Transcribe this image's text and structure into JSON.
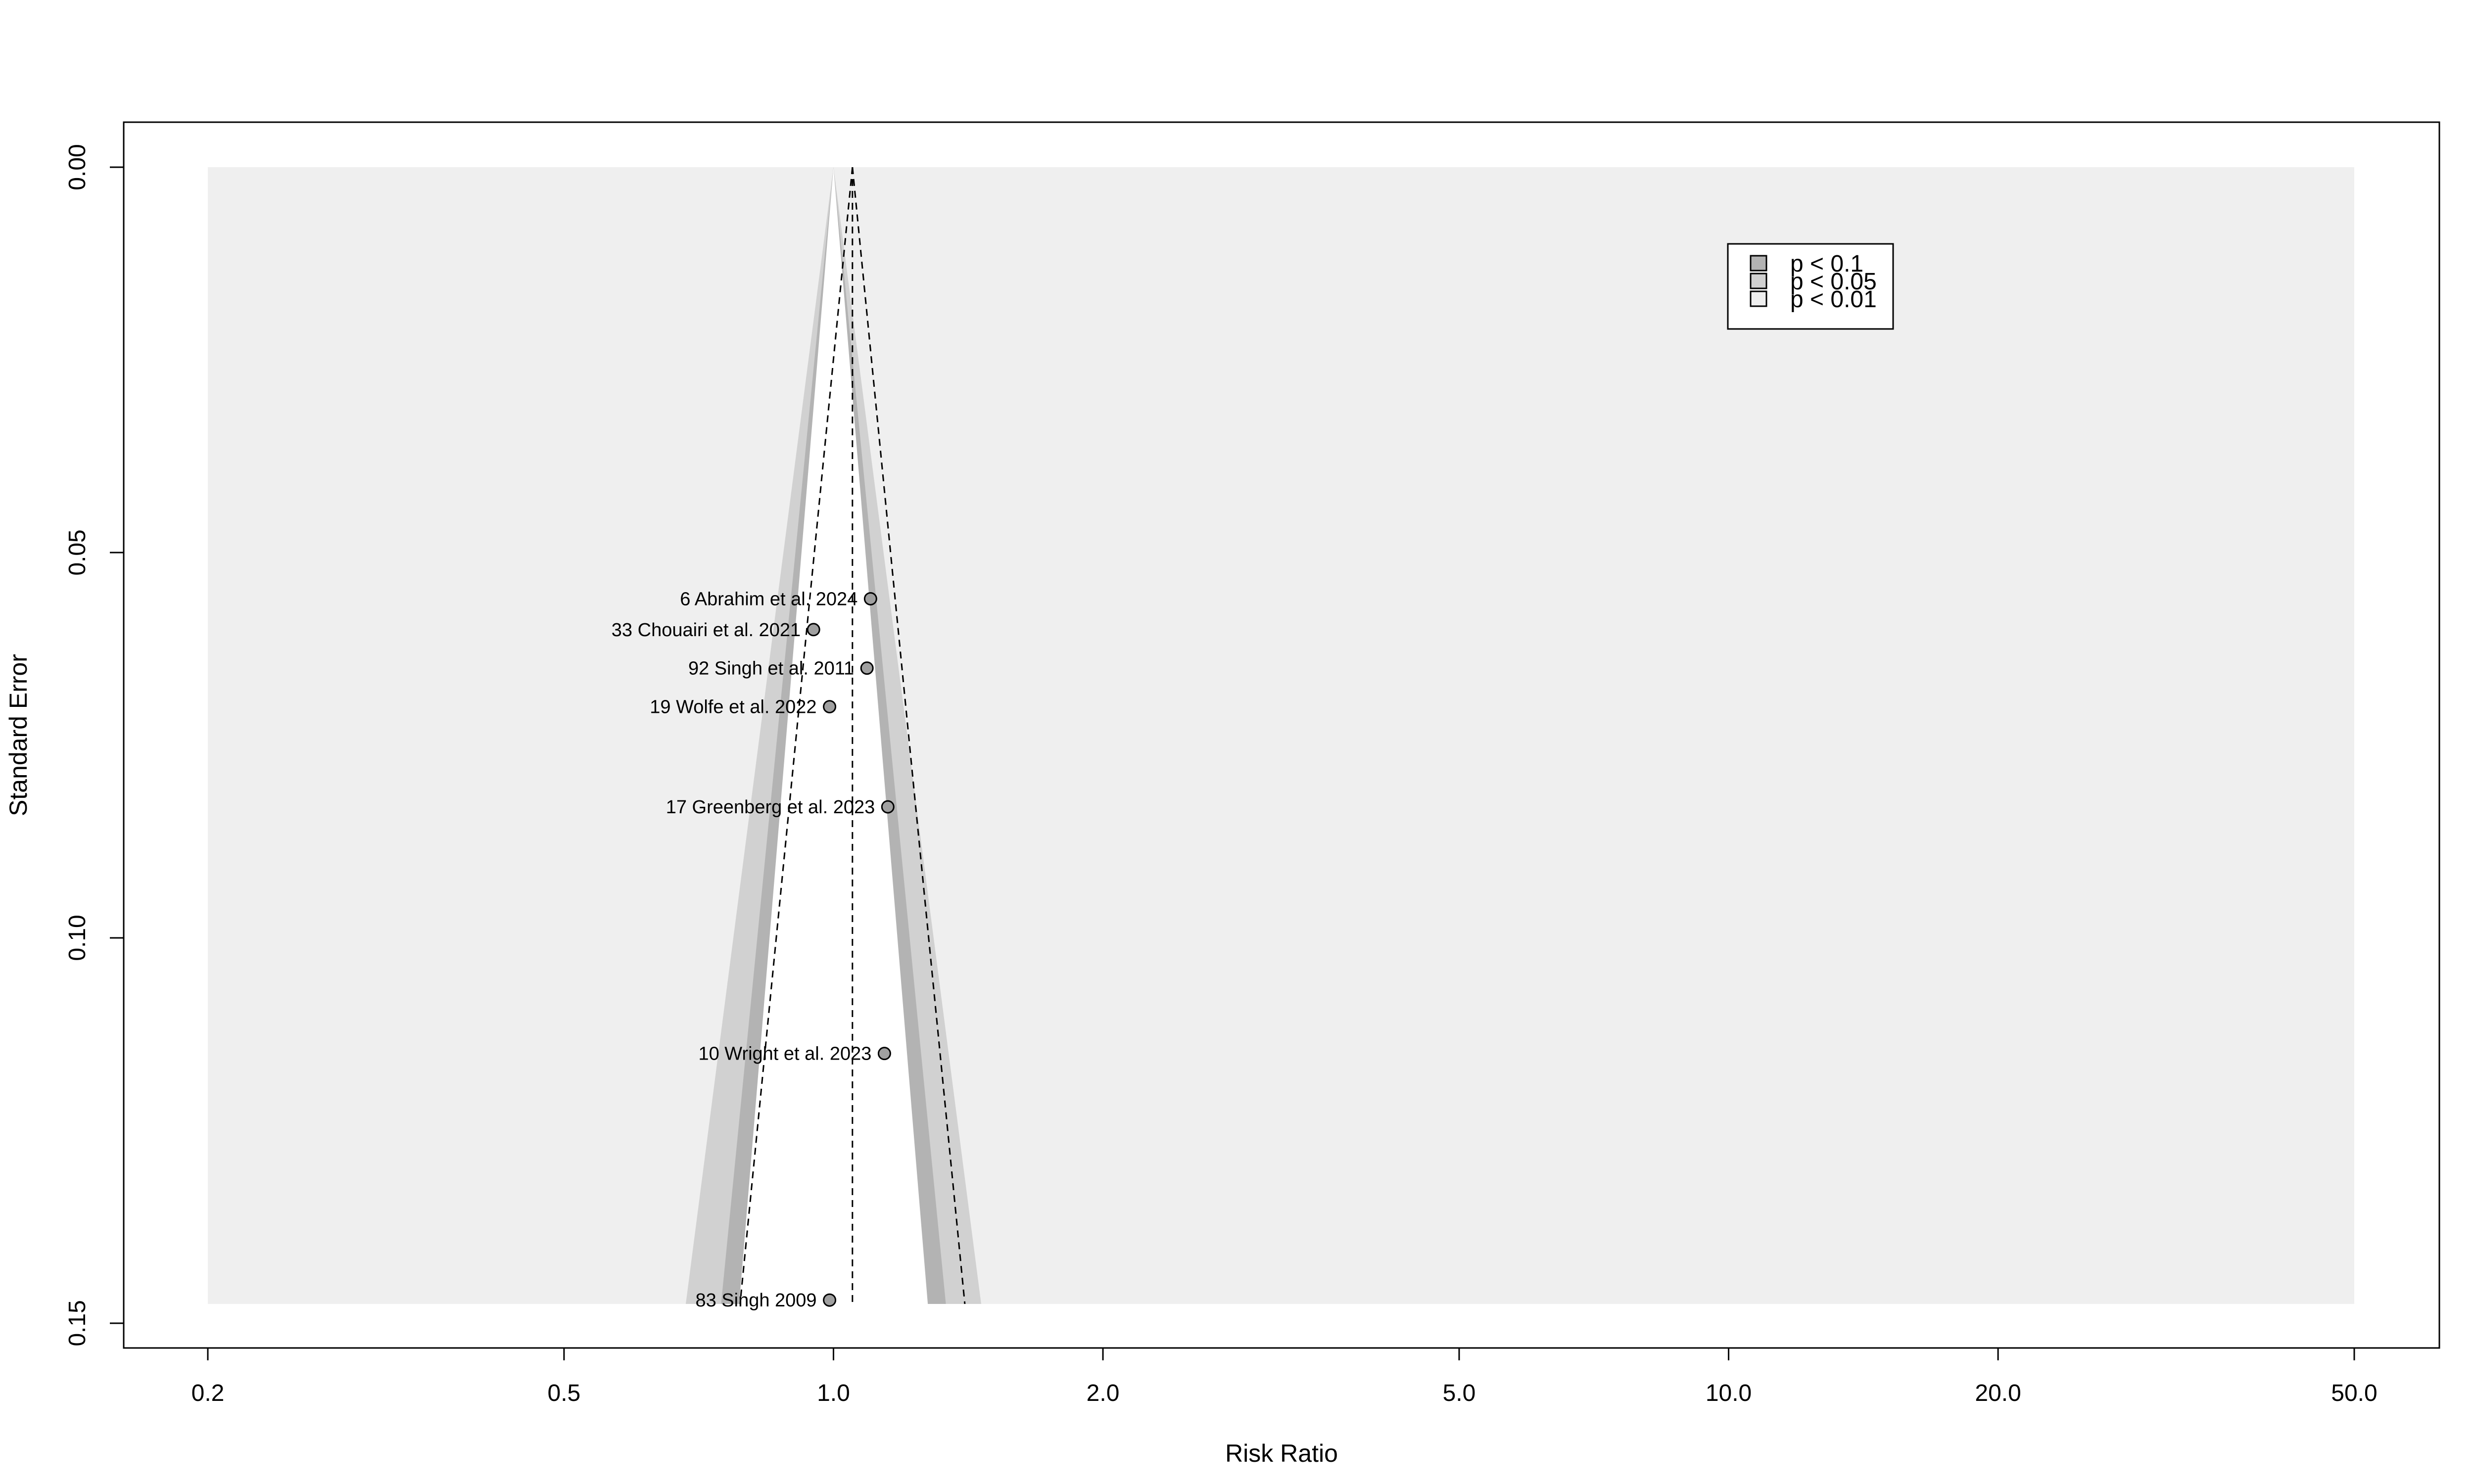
{
  "chart_data": {
    "type": "scatter",
    "subtype": "contour-enhanced funnel plot",
    "title": "",
    "xlabel": "Risk Ratio",
    "ylabel": "Standard Error",
    "x_scale": "log",
    "xlim": [
      0.2,
      50.0
    ],
    "ylim": [
      0.0,
      0.1475
    ],
    "y_reversed": true,
    "x_ticks": [
      "0.2",
      "0.5",
      "1.0",
      "2.0",
      "5.0",
      "10.0",
      "20.0",
      "50.0"
    ],
    "y_ticks": [
      "0.00",
      "0.05",
      "0.10",
      "0.15"
    ],
    "pooled_estimate": 1.05,
    "points": [
      {
        "label": "6 Abrahim et al. 2024",
        "x": 1.1,
        "y": 0.056
      },
      {
        "label": "33 Chouairi et al. 2021",
        "x": 0.95,
        "y": 0.06
      },
      {
        "label": "92 Singh et al. 2011",
        "x": 1.09,
        "y": 0.065
      },
      {
        "label": "19 Wolfe et al. 2022",
        "x": 0.99,
        "y": 0.07
      },
      {
        "label": "17 Greenberg et al. 2023",
        "x": 1.15,
        "y": 0.083
      },
      {
        "label": "10 Wright et al. 2023",
        "x": 1.14,
        "y": 0.115
      },
      {
        "label": "83 Singh 2009",
        "x": 0.99,
        "y": 0.147
      }
    ],
    "legend": {
      "placement": "top-right",
      "entries": [
        {
          "label": "p < 0.1",
          "color": "#b3b3b3"
        },
        {
          "label": "p < 0.05",
          "color": "#d1d1d1"
        },
        {
          "label": "p < 0.01",
          "color": "#efefef"
        }
      ]
    },
    "colors": {
      "background_region": "#efefef",
      "contour_p10": "#b3b3b3",
      "contour_p05": "#d1d1d1",
      "funnel_inner": "#ffffff",
      "point_fill": "#a0a0a0"
    }
  }
}
